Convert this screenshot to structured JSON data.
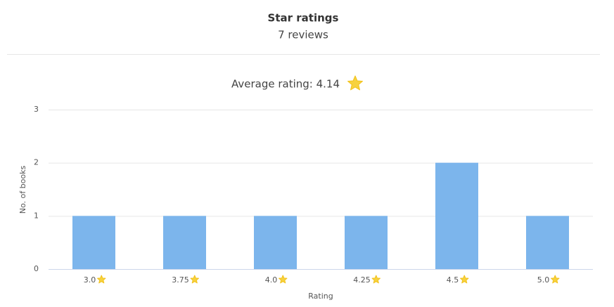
{
  "chart_data": {
    "type": "bar",
    "title": "Star ratings",
    "subtitle": "7 reviews",
    "annotation": "Average rating: 4.14",
    "categories": [
      "3.0",
      "3.75",
      "4.0",
      "4.25",
      "4.5",
      "5.0"
    ],
    "values": [
      1,
      1,
      1,
      1,
      2,
      1
    ],
    "color": "#7cb5ec",
    "ylim": [
      0,
      3
    ],
    "yticks": [
      0,
      1,
      2,
      3
    ],
    "grid": true,
    "xlabel": "Rating",
    "ylabel": "No. of books"
  }
}
